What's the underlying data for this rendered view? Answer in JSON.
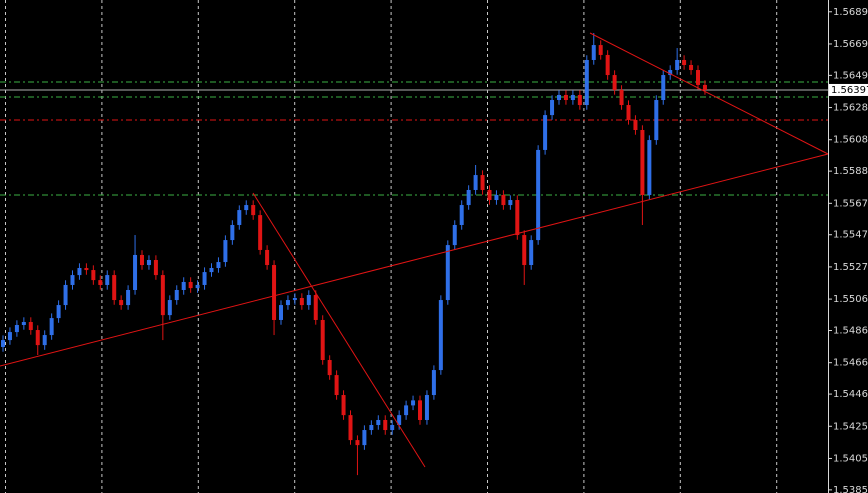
{
  "chart_data": {
    "type": "candlestick",
    "up_color": "#2f6fe8",
    "down_color": "#e01414",
    "ylim": [
      1.5383,
      1.5697
    ],
    "yticks": [
      {
        "value": 1.56895,
        "label": "1.56895"
      },
      {
        "value": 1.5669,
        "label": "1.56690"
      },
      {
        "value": 1.5649,
        "label": "1.56490"
      },
      {
        "value": 1.56285,
        "label": "1.56285"
      },
      {
        "value": 1.5608,
        "label": "1.56080"
      },
      {
        "value": 1.5588,
        "label": "1.55880"
      },
      {
        "value": 1.55675,
        "label": "1.55675"
      },
      {
        "value": 1.55475,
        "label": "1.55475"
      },
      {
        "value": 1.5527,
        "label": "1.55270"
      },
      {
        "value": 1.55065,
        "label": "1.55065"
      },
      {
        "value": 1.54865,
        "label": "1.54865"
      },
      {
        "value": 1.5466,
        "label": "1.54660"
      },
      {
        "value": 1.5446,
        "label": "1.54460"
      },
      {
        "value": 1.54255,
        "label": "1.54255"
      },
      {
        "value": 1.5405,
        "label": "1.54050"
      },
      {
        "value": 1.5385,
        "label": "1.53850"
      }
    ],
    "last_price": 1.56397,
    "levels": [
      {
        "value": 1.56448,
        "color": "#3cb043"
      },
      {
        "value": 1.56352,
        "color": "#3cb043"
      },
      {
        "value": 1.56206,
        "color": "#e01414"
      },
      {
        "value": 1.55728,
        "color": "#3cb043"
      }
    ],
    "open": [
      1.5476,
      1.54804,
      1.54855,
      1.549,
      1.54919,
      1.54868,
      1.54772,
      1.54836,
      1.54944,
      1.55027,
      1.55155,
      1.55218,
      1.55263,
      1.5525,
      1.55186,
      1.55155,
      1.55218,
      1.55059,
      1.55027,
      1.55123,
      1.55346,
      1.55282,
      1.55314,
      1.55218,
      1.54963,
      1.55059,
      1.55123,
      1.55174,
      1.55135,
      1.55155,
      1.55237,
      1.55263,
      1.55301,
      1.55441,
      1.55537,
      1.55632,
      1.55664,
      1.556,
      1.55378,
      1.55282,
      1.54932,
      1.55027,
      1.55059,
      1.55072,
      1.55027,
      1.55091,
      1.54932,
      1.54677,
      1.54581,
      1.54454,
      1.54326,
      1.54167,
      1.54135,
      1.54231,
      1.54263,
      1.54295,
      1.54231,
      1.54263,
      1.54326,
      1.54388,
      1.5442,
      1.54295,
      1.54454,
      1.54613,
      1.55059,
      1.55409,
      1.55537,
      1.55664,
      1.5576,
      1.55855,
      1.5576,
      1.55696,
      1.55728,
      1.55664,
      1.55696,
      1.55473,
      1.55282,
      1.55441,
      1.56015,
      1.56237,
      1.56333,
      1.56365,
      1.56333,
      1.56365,
      1.56301,
      1.56588,
      1.56683,
      1.5662,
      1.56492,
      1.56397,
      1.56301,
      1.56206,
      1.56142,
      1.55728,
      1.56078,
      1.56333,
      1.56492,
      1.56524,
      1.56588,
      1.56556,
      1.56524,
      1.56429
    ],
    "high": [
      1.54834,
      1.54885,
      1.5493,
      1.54949,
      1.54949,
      1.54898,
      1.54866,
      1.54974,
      1.55057,
      1.55185,
      1.55248,
      1.55293,
      1.55293,
      1.5528,
      1.55216,
      1.55248,
      1.55248,
      1.55089,
      1.55153,
      1.55473,
      1.55376,
      1.55344,
      1.55344,
      1.55248,
      1.55089,
      1.55153,
      1.55204,
      1.55204,
      1.55185,
      1.55267,
      1.55293,
      1.55331,
      1.55471,
      1.55567,
      1.55662,
      1.55694,
      1.55694,
      1.5563,
      1.55408,
      1.55312,
      1.55057,
      1.55089,
      1.55102,
      1.55102,
      1.55121,
      1.55121,
      1.54962,
      1.54707,
      1.54611,
      1.54484,
      1.54356,
      1.54197,
      1.54261,
      1.54293,
      1.54325,
      1.54325,
      1.54293,
      1.54356,
      1.54418,
      1.5445,
      1.5445,
      1.54484,
      1.54643,
      1.55089,
      1.55439,
      1.55567,
      1.55694,
      1.5579,
      1.55919,
      1.55885,
      1.5579,
      1.55758,
      1.55758,
      1.55726,
      1.55726,
      1.55503,
      1.55471,
      1.56045,
      1.56267,
      1.56363,
      1.56395,
      1.56395,
      1.56395,
      1.56395,
      1.56618,
      1.5676,
      1.56713,
      1.5665,
      1.56522,
      1.56427,
      1.56331,
      1.56236,
      1.56172,
      1.56108,
      1.56363,
      1.56522,
      1.56554,
      1.56664,
      1.56618,
      1.56586,
      1.56554,
      1.56459
    ],
    "low": [
      1.5473,
      1.54774,
      1.54825,
      1.5487,
      1.54838,
      1.54709,
      1.54742,
      1.54806,
      1.54914,
      1.54997,
      1.55125,
      1.55188,
      1.5522,
      1.55156,
      1.55125,
      1.55125,
      1.55029,
      1.54997,
      1.54997,
      1.55093,
      1.55252,
      1.55252,
      1.55188,
      1.54804,
      1.54933,
      1.55029,
      1.55093,
      1.55105,
      1.55105,
      1.55125,
      1.55207,
      1.55233,
      1.55271,
      1.55411,
      1.55507,
      1.55602,
      1.5557,
      1.55348,
      1.55252,
      1.54836,
      1.54902,
      1.54997,
      1.55029,
      1.54997,
      1.54997,
      1.54902,
      1.54647,
      1.54551,
      1.54424,
      1.54296,
      1.54137,
      1.53944,
      1.54105,
      1.54201,
      1.54233,
      1.54201,
      1.54201,
      1.54233,
      1.54296,
      1.54358,
      1.54265,
      1.54265,
      1.54424,
      1.54583,
      1.55029,
      1.55379,
      1.55507,
      1.55634,
      1.5573,
      1.5573,
      1.55666,
      1.55666,
      1.55634,
      1.55634,
      1.55443,
      1.55155,
      1.55252,
      1.55411,
      1.55985,
      1.56207,
      1.56303,
      1.56303,
      1.56303,
      1.56271,
      1.56271,
      1.56558,
      1.5659,
      1.56462,
      1.56367,
      1.56271,
      1.56176,
      1.56112,
      1.55537,
      1.55698,
      1.56048,
      1.56303,
      1.56462,
      1.56494,
      1.56526,
      1.56494,
      1.56399,
      1.56367
    ],
    "close": [
      1.54804,
      1.54855,
      1.549,
      1.54919,
      1.54868,
      1.54772,
      1.54836,
      1.54944,
      1.55027,
      1.55155,
      1.55218,
      1.55263,
      1.5525,
      1.55186,
      1.55155,
      1.55218,
      1.55059,
      1.55027,
      1.55123,
      1.55346,
      1.55282,
      1.55314,
      1.55218,
      1.54963,
      1.55059,
      1.55123,
      1.55174,
      1.55135,
      1.55155,
      1.55237,
      1.55263,
      1.55301,
      1.55441,
      1.55537,
      1.55632,
      1.55664,
      1.556,
      1.55378,
      1.55282,
      1.54932,
      1.55027,
      1.55059,
      1.55072,
      1.55027,
      1.55091,
      1.54932,
      1.54677,
      1.54581,
      1.54454,
      1.54326,
      1.54167,
      1.54135,
      1.54231,
      1.54263,
      1.54295,
      1.54231,
      1.54263,
      1.54326,
      1.54388,
      1.5442,
      1.54295,
      1.54454,
      1.54613,
      1.55059,
      1.55409,
      1.55537,
      1.55664,
      1.5576,
      1.55855,
      1.5576,
      1.55696,
      1.55728,
      1.55664,
      1.55696,
      1.55473,
      1.55282,
      1.55441,
      1.56015,
      1.56237,
      1.56333,
      1.56365,
      1.56333,
      1.56365,
      1.56301,
      1.56588,
      1.56683,
      1.5662,
      1.56492,
      1.56397,
      1.56301,
      1.56206,
      1.56142,
      1.55728,
      1.56078,
      1.56333,
      1.56492,
      1.56524,
      1.56588,
      1.56556,
      1.56524,
      1.56429,
      1.56397
    ]
  }
}
